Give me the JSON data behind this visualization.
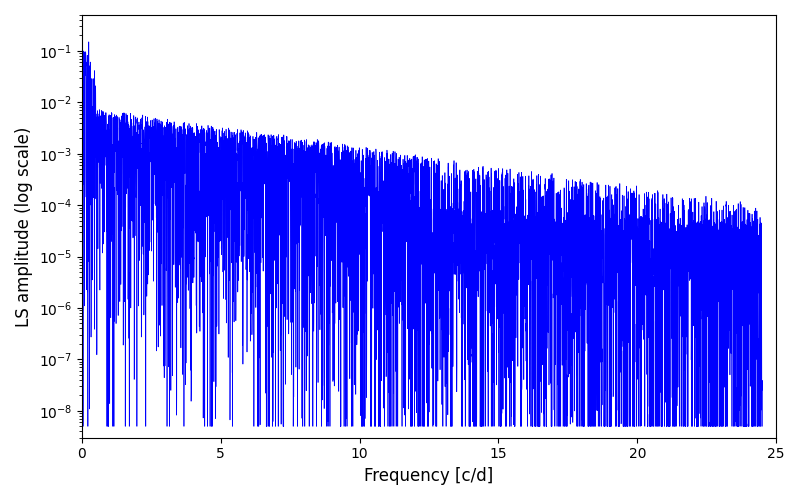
{
  "xlabel": "Frequency [c/d]",
  "ylabel": "LS amplitude (log scale)",
  "xlim": [
    0,
    25
  ],
  "ylim": [
    3e-09,
    0.5
  ],
  "color": "#0000ff",
  "linewidth": 0.5,
  "title": "",
  "seed": 1234,
  "n_freqs": 8000,
  "freq_max": 24.5,
  "background_color": "#ffffff",
  "figsize": [
    8.0,
    5.0
  ],
  "dpi": 100
}
